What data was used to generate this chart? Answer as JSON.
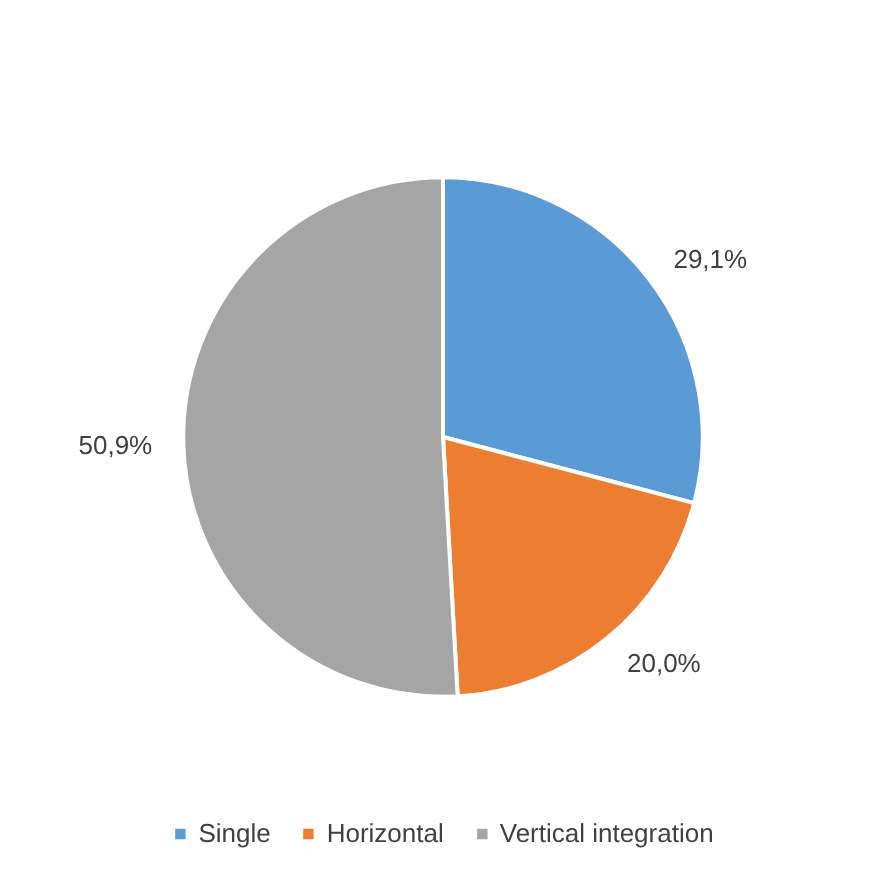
{
  "chart_data": {
    "type": "pie",
    "categories": [
      "Single",
      "Horizontal",
      "Vertical integration"
    ],
    "values": [
      29.1,
      20.0,
      50.9
    ],
    "colors": [
      "#5b9bd5",
      "#ed7d31",
      "#a5a5a5"
    ],
    "value_labels": [
      "29,1%",
      "20,0%",
      "50,9%"
    ],
    "legend": "bottom"
  }
}
